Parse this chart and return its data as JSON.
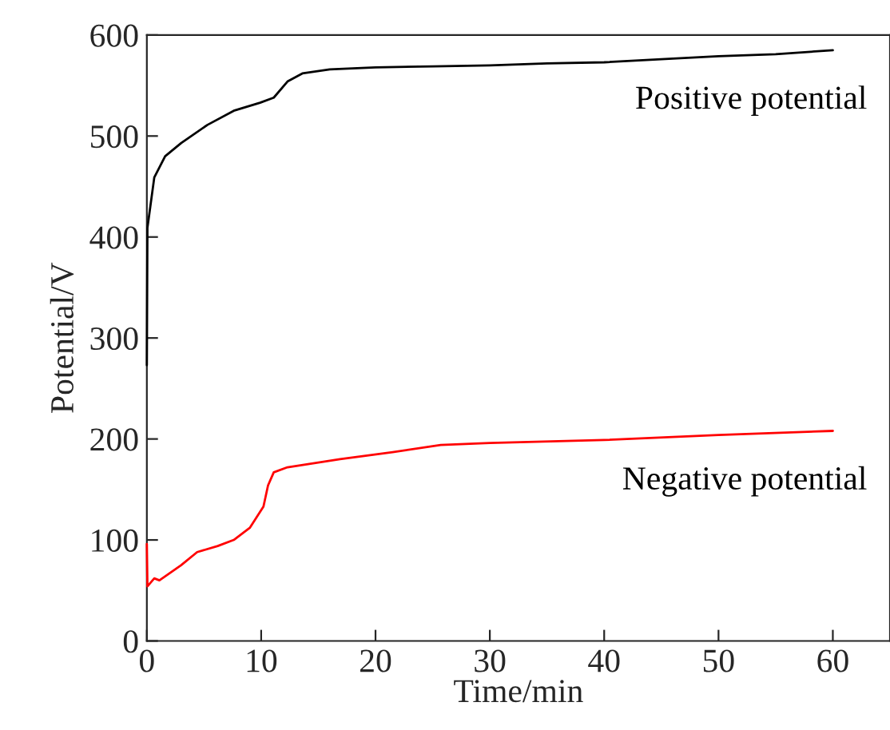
{
  "chart_data": {
    "type": "line",
    "xlabel": "Time/min",
    "ylabel": "Potential/V",
    "xlim": [
      0,
      65
    ],
    "ylim": [
      0,
      600
    ],
    "xticks": [
      0,
      10,
      20,
      30,
      40,
      50,
      60
    ],
    "yticks": [
      0,
      100,
      200,
      300,
      400,
      500,
      600
    ],
    "grid": false,
    "legend": false,
    "marker": "none",
    "line_style": "solid",
    "series": [
      {
        "name": "Positive potential",
        "color": "#000000",
        "x": [
          0,
          0.05,
          0.65,
          1.6,
          3.0,
          5.3,
          7.6,
          9.9,
          11.1,
          12.3,
          13.6,
          16,
          20,
          25,
          30,
          35,
          40,
          45,
          50,
          55,
          60
        ],
        "values": [
          273,
          409,
          459,
          480,
          493,
          511,
          525,
          533,
          538,
          554,
          562,
          566,
          568,
          569,
          570,
          572,
          573,
          576,
          579,
          581,
          585
        ]
      },
      {
        "name": "Negative potential",
        "color": "#ff0000",
        "x": [
          0,
          0.05,
          0.65,
          1.1,
          3.0,
          4.4,
          6.2,
          7.6,
          9.0,
          10.2,
          10.6,
          11.1,
          12.3,
          16.9,
          21.5,
          25.7,
          30,
          40,
          50,
          60
        ],
        "values": [
          96,
          54,
          62,
          60,
          75,
          88,
          94,
          100,
          112,
          133,
          154,
          167,
          172,
          180,
          187,
          194,
          196,
          199,
          204,
          208
        ]
      }
    ]
  }
}
